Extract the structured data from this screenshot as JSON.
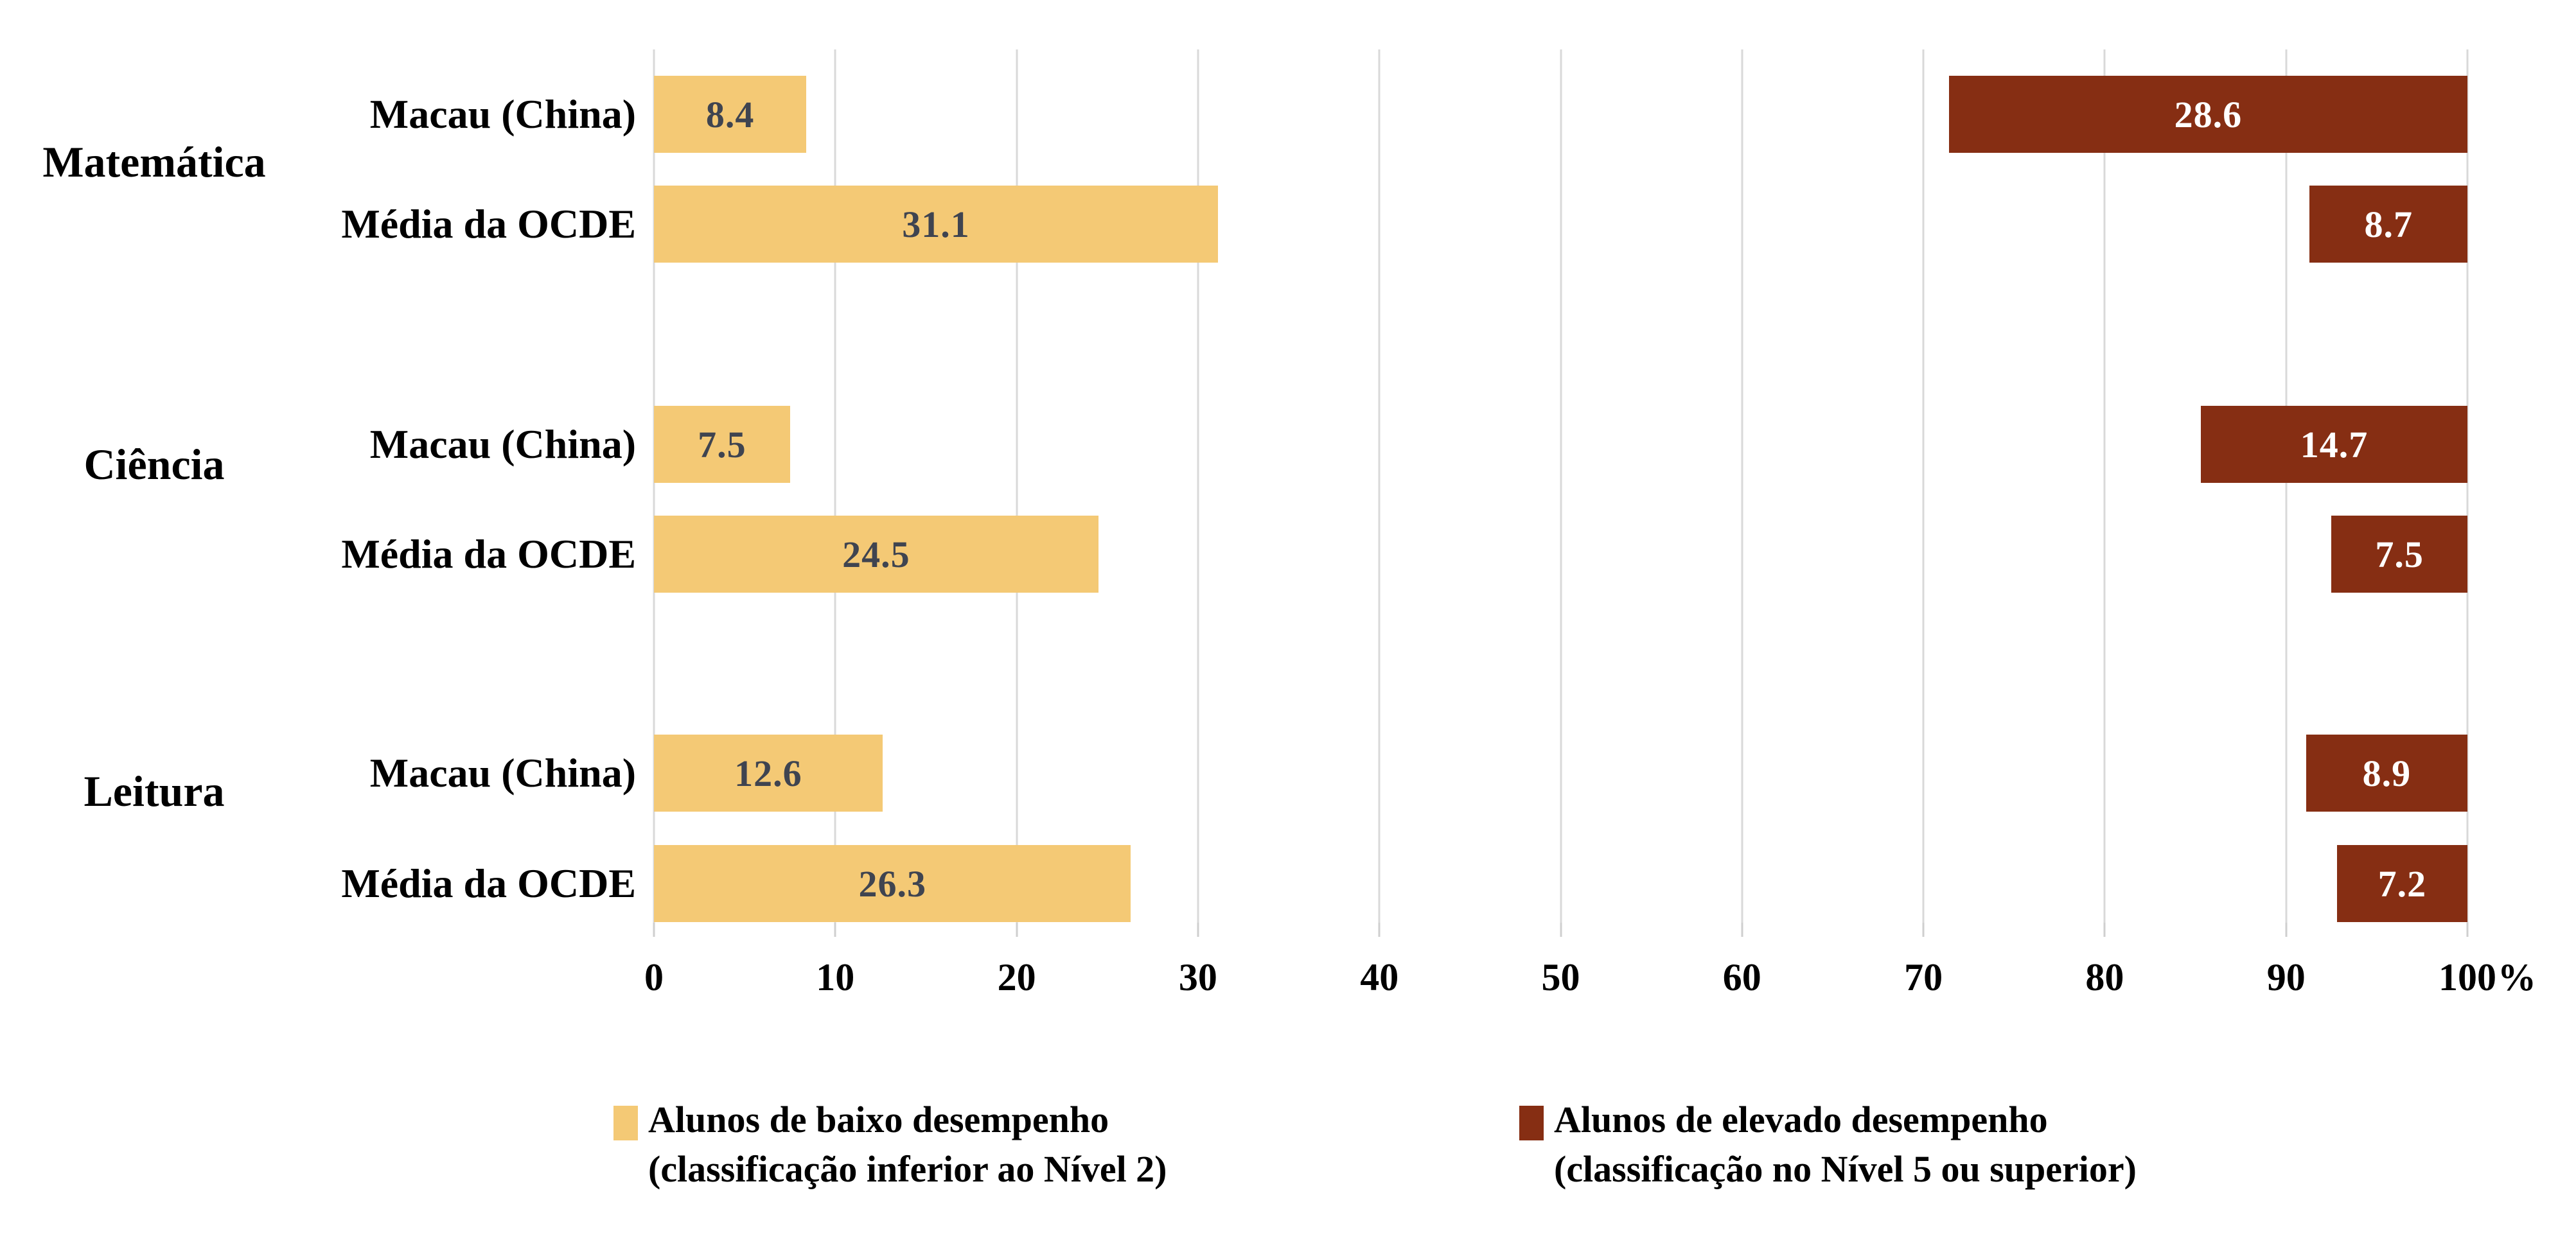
{
  "chart_data": {
    "type": "bar",
    "orientation": "horizontal",
    "title": "",
    "xlabel": "",
    "ylabel": "",
    "xlim": [
      0,
      100
    ],
    "x_ticks": [
      0,
      10,
      20,
      30,
      40,
      50,
      60,
      70,
      80,
      90,
      100
    ],
    "x_suffix": "%",
    "grid": true,
    "legend_position": "bottom",
    "groups": [
      {
        "label": "Matemática",
        "rows": [
          {
            "label": "Macau (China)",
            "low": 8.4,
            "high": 28.6
          },
          {
            "label": "Média da OCDE",
            "low": 31.1,
            "high": 8.7
          }
        ]
      },
      {
        "label": "Ciência",
        "rows": [
          {
            "label": "Macau (China)",
            "low": 7.5,
            "high": 14.7
          },
          {
            "label": "Média da OCDE",
            "low": 24.5,
            "high": 7.5
          }
        ]
      },
      {
        "label": "Leitura",
        "rows": [
          {
            "label": "Macau (China)",
            "low": 12.6,
            "high": 8.9
          },
          {
            "label": "Média da OCDE",
            "low": 26.3,
            "high": 7.2
          }
        ]
      }
    ],
    "series": [
      {
        "id": "low",
        "name_lines": [
          "Alunos de baixo desempenho",
          "(classificação inferior ao Nível 2)"
        ],
        "anchor": "left",
        "color": "#F4C975",
        "label_color": "#3F4450"
      },
      {
        "id": "high",
        "name_lines": [
          "Alunos de elevado desempenho",
          "(classificação no Nível 5 ou superior)"
        ],
        "anchor": "right",
        "color": "#862E13",
        "label_color": "#FFFFFF"
      }
    ],
    "colors": {
      "gridline": "#D9D9D9",
      "tick_stub": "#CFCFCF",
      "axis_text": "#000000"
    }
  }
}
